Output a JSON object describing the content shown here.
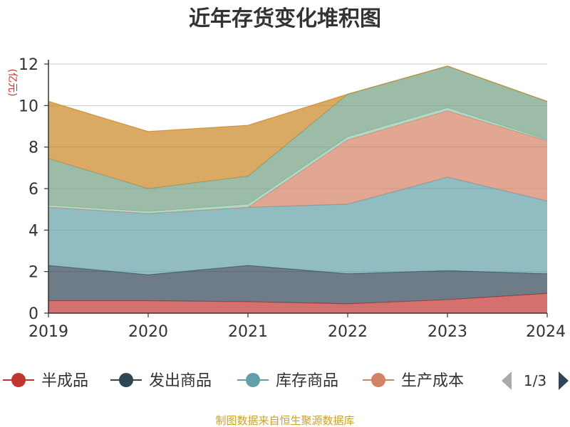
{
  "chart_data": {
    "type": "area",
    "title": "近年存货变化堆积图",
    "ylabel": "(亿元)",
    "xlabel": "",
    "categories": [
      "2019",
      "2020",
      "2021",
      "2022",
      "2023",
      "2024"
    ],
    "ylim": [
      0,
      12
    ],
    "yticks": [
      "0",
      "2",
      "4",
      "6",
      "8",
      "10",
      "12"
    ],
    "stacked": true,
    "grid": true,
    "series": [
      {
        "name": "半成品",
        "values": [
          0.6,
          0.6,
          0.55,
          0.45,
          0.65,
          0.95
        ],
        "color": "#c23531"
      },
      {
        "name": "发出商品",
        "values": [
          1.7,
          1.25,
          1.75,
          1.45,
          1.4,
          0.95
        ],
        "color": "#2f4554"
      },
      {
        "name": "库存商品",
        "values": [
          2.8,
          2.95,
          2.8,
          3.35,
          4.5,
          3.5
        ],
        "color": "#61a0a8"
      },
      {
        "name": "生产成本",
        "values": [
          0,
          0,
          0,
          3.1,
          3.2,
          2.9
        ],
        "color": "#d48265"
      },
      {
        "name": "",
        "values": [
          0.1,
          0.1,
          0.15,
          0.15,
          0.15,
          0.05
        ],
        "color": "#91c7ae"
      },
      {
        "name": "",
        "values": [
          2.25,
          1.1,
          1.35,
          2.05,
          2.0,
          1.85
        ],
        "color": "#749f83"
      },
      {
        "name": "",
        "values": [
          2.75,
          2.75,
          2.45,
          0,
          0,
          0
        ],
        "color": "#ca8622"
      }
    ]
  },
  "legend": {
    "items": [
      {
        "name": "半成品",
        "color": "#c23531"
      },
      {
        "name": "发出商品",
        "color": "#2f4554"
      },
      {
        "name": "库存商品",
        "color": "#61a0a8"
      },
      {
        "name": "生产成本",
        "color": "#d48265"
      }
    ],
    "page": "1/3"
  },
  "source": "制图数据来自恒生聚源数据库"
}
